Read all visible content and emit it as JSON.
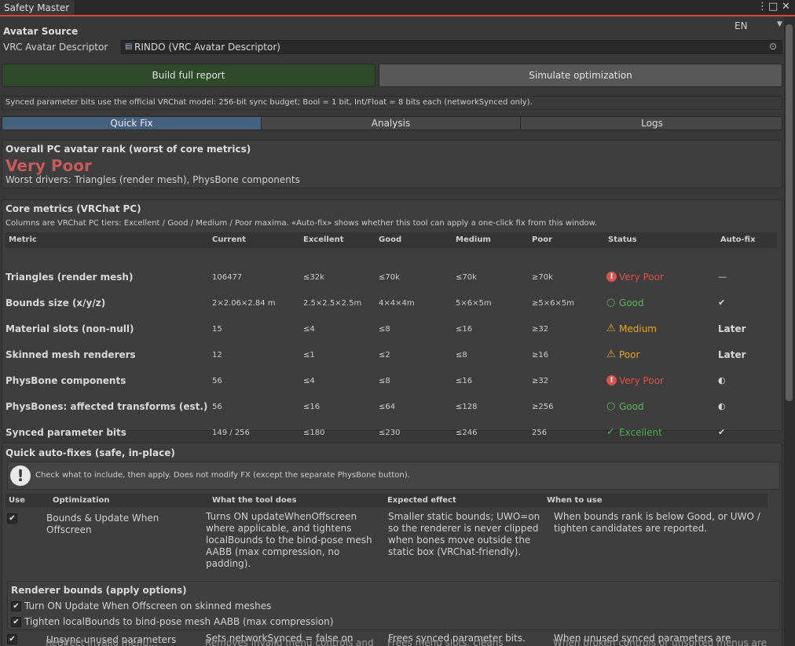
{
  "window": {
    "title": "Safety Master"
  },
  "language": {
    "selected": "EN"
  },
  "avatar_source": {
    "heading": "Avatar Source",
    "descriptor_label": "VRC Avatar Descriptor",
    "descriptor_value": "RINDO (VRC Avatar Descriptor)"
  },
  "actions": {
    "build": "Build full report",
    "simulate": "Simulate optimization"
  },
  "info_text": "Synced parameter bits use the official VRChat model: 256-bit sync budget; Bool = 1 bit, Int/Float = 8 bits each (networkSynced only).",
  "tabs": [
    "Quick Fix",
    "Analysis",
    "Logs"
  ],
  "rank": {
    "heading": "Overall PC avatar rank (worst of core metrics)",
    "value": "Very Poor",
    "drivers": "Worst drivers: Triangles (render mesh), PhysBone components"
  },
  "core": {
    "heading": "Core metrics (VRChat PC)",
    "subtitle": "Columns are VRChat PC tiers: Excellent / Good / Medium / Poor maxima. «Auto-fix» shows whether this tool can apply a one-click fix from this window.",
    "headers": [
      "Metric",
      "Current",
      "Excellent",
      "Good",
      "Medium",
      "Poor",
      "Status",
      "Auto-fix"
    ],
    "rows": [
      {
        "metric": "Triangles (render mesh)",
        "current": "106477",
        "excellent": "≤32k",
        "good": "≤70k",
        "medium": "≤70k",
        "poor": "≥70k",
        "status_icon": "!",
        "status": "Very Poor",
        "autofix": "—",
        "color": "#d9534f"
      },
      {
        "metric": "Bounds size (x/y/z)",
        "current": "2×2.06×2.84 m",
        "excellent": "2.5×2.5×2.5m",
        "good": "4×4×4m",
        "medium": "5×6×5m",
        "poor": "≥5×6×5m",
        "status_icon": "○",
        "status": "Good",
        "autofix": "✔",
        "color": "#5cb85c"
      },
      {
        "metric": "Material slots (non-null)",
        "current": "15",
        "excellent": "≤4",
        "good": "≤8",
        "medium": "≤16",
        "poor": "≥32",
        "status_icon": "⚠",
        "status": "Medium",
        "autofix": "Later",
        "color": "#e6a817"
      },
      {
        "metric": "Skinned mesh renderers",
        "current": "12",
        "excellent": "≤1",
        "good": "≤2",
        "medium": "≤8",
        "poor": "≥16",
        "status_icon": "⚠",
        "status": "Poor",
        "autofix": "Later",
        "color": "#e6a817"
      },
      {
        "metric": "PhysBone components",
        "current": "56",
        "excellent": "≤4",
        "good": "≤8",
        "medium": "≤16",
        "poor": "≥32",
        "status_icon": "!",
        "status": "Very Poor",
        "autofix": "◐",
        "color": "#d9534f"
      },
      {
        "metric": "PhysBones: affected transforms (est.)",
        "current": "56",
        "excellent": "≤16",
        "good": "≤64",
        "medium": "≤128",
        "poor": "≥256",
        "status_icon": "○",
        "status": "Good",
        "autofix": "◐",
        "color": "#5cb85c"
      },
      {
        "metric": "Synced parameter bits",
        "current": "149 / 256",
        "excellent": "≤180",
        "good": "≤230",
        "medium": "≤246",
        "poor": "256",
        "status_icon": "✓",
        "status": "Excellent",
        "autofix": "✔",
        "color": "#4caf50"
      }
    ]
  },
  "quick": {
    "heading": "Quick auto-fixes (safe, in-place)",
    "note": "Check what to include, then apply. Does not modify FX (except the separate PhysBone button).",
    "headers": [
      "Use",
      "Optimization",
      "What the tool does",
      "Expected effect",
      "When to use"
    ],
    "rows": [
      {
        "checked": "✔",
        "name": "Bounds & Update When Offscreen",
        "does": "Turns ON updateWhenOffscreen where applicable, and tightens localBounds to the bind-pose mesh AABB (max compression, no padding).",
        "effect": "Smaller static bounds; UWO=on so the renderer is never clipped when bones move outside the static box (VRChat-friendly).",
        "when": "When bounds rank is below Good, or UWO / tighten candidates are reported."
      },
      {
        "checked": "✔",
        "name": "Unsync unused parameters",
        "does": "Sets networkSynced = false on parameters listed as possibly unused.",
        "effect": "Frees synced parameter bits.",
        "when": "When unused synced parameters are detected."
      }
    ],
    "renderer_options": {
      "heading": "Renderer bounds (apply options)",
      "opt1": "Turn ON Update When Offscreen on skinned meshes",
      "opt2": "Tighten localBounds to bind-pose mesh AABB (max compression)"
    },
    "partial_row": {
      "name": "Redirect invalid menu...",
      "does": "Removes invalid menu controls and",
      "effect": "Frees menu slots, cleans",
      "when": "When broken controls or unsorted menus are"
    }
  }
}
